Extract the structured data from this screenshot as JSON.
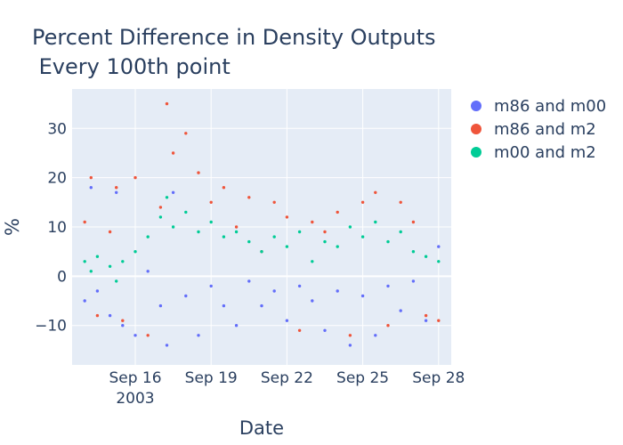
{
  "chart_data": {
    "type": "scatter",
    "title": [
      "Percent Difference in Density Outputs",
      " Every 100th point"
    ],
    "xlabel": "Date",
    "ylabel": "%",
    "x_range": [
      "2003-09-13T12:00",
      "2003-09-28T12:00"
    ],
    "ylim": [
      -18,
      38
    ],
    "x_ticks": [
      {
        "date": "2003-09-16",
        "label": "Sep 16",
        "sublabel": "2003"
      },
      {
        "date": "2003-09-19",
        "label": "Sep 19"
      },
      {
        "date": "2003-09-22",
        "label": "Sep 22"
      },
      {
        "date": "2003-09-25",
        "label": "Sep 25"
      },
      {
        "date": "2003-09-28",
        "label": "Sep 28"
      }
    ],
    "y_ticks": [
      -10,
      0,
      10,
      20,
      30
    ],
    "grid": true,
    "legend_position": "top-right",
    "background": "#e5ecf6",
    "series": [
      {
        "name": "m86 and m00",
        "color": "#636efa",
        "points": [
          [
            "2003-09-14T00:00",
            -5
          ],
          [
            "2003-09-14T06:00",
            18
          ],
          [
            "2003-09-14T12:00",
            -3
          ],
          [
            "2003-09-15T00:00",
            -8
          ],
          [
            "2003-09-15T06:00",
            17
          ],
          [
            "2003-09-15T12:00",
            -10
          ],
          [
            "2003-09-16T00:00",
            -12
          ],
          [
            "2003-09-16T12:00",
            1
          ],
          [
            "2003-09-17T00:00",
            -6
          ],
          [
            "2003-09-17T06:00",
            -14
          ],
          [
            "2003-09-17T12:00",
            17
          ],
          [
            "2003-09-18T00:00",
            -4
          ],
          [
            "2003-09-18T12:00",
            -12
          ],
          [
            "2003-09-19T00:00",
            -2
          ],
          [
            "2003-09-19T12:00",
            -6
          ],
          [
            "2003-09-20T00:00",
            -10
          ],
          [
            "2003-09-20T12:00",
            -1
          ],
          [
            "2003-09-21T00:00",
            -6
          ],
          [
            "2003-09-21T12:00",
            -3
          ],
          [
            "2003-09-22T00:00",
            -9
          ],
          [
            "2003-09-22T12:00",
            -2
          ],
          [
            "2003-09-23T00:00",
            -5
          ],
          [
            "2003-09-23T12:00",
            -11
          ],
          [
            "2003-09-24T00:00",
            -3
          ],
          [
            "2003-09-24T12:00",
            -14
          ],
          [
            "2003-09-25T00:00",
            -4
          ],
          [
            "2003-09-25T12:00",
            -12
          ],
          [
            "2003-09-26T00:00",
            -2
          ],
          [
            "2003-09-26T12:00",
            -7
          ],
          [
            "2003-09-27T00:00",
            -1
          ],
          [
            "2003-09-27T12:00",
            -9
          ],
          [
            "2003-09-28T00:00",
            6
          ]
        ]
      },
      {
        "name": "m86 and m2",
        "color": "#ef553b",
        "points": [
          [
            "2003-09-14T00:00",
            11
          ],
          [
            "2003-09-14T06:00",
            20
          ],
          [
            "2003-09-14T12:00",
            -8
          ],
          [
            "2003-09-15T00:00",
            9
          ],
          [
            "2003-09-15T06:00",
            18
          ],
          [
            "2003-09-15T12:00",
            -9
          ],
          [
            "2003-09-16T00:00",
            20
          ],
          [
            "2003-09-16T12:00",
            -12
          ],
          [
            "2003-09-17T00:00",
            14
          ],
          [
            "2003-09-17T06:00",
            35
          ],
          [
            "2003-09-17T12:00",
            25
          ],
          [
            "2003-09-18T00:00",
            29
          ],
          [
            "2003-09-18T12:00",
            21
          ],
          [
            "2003-09-19T00:00",
            15
          ],
          [
            "2003-09-19T12:00",
            18
          ],
          [
            "2003-09-20T00:00",
            10
          ],
          [
            "2003-09-20T12:00",
            16
          ],
          [
            "2003-09-21T00:00",
            5
          ],
          [
            "2003-09-21T12:00",
            15
          ],
          [
            "2003-09-22T00:00",
            12
          ],
          [
            "2003-09-22T12:00",
            -11
          ],
          [
            "2003-09-23T00:00",
            11
          ],
          [
            "2003-09-23T12:00",
            9
          ],
          [
            "2003-09-24T00:00",
            13
          ],
          [
            "2003-09-24T12:00",
            -12
          ],
          [
            "2003-09-25T00:00",
            15
          ],
          [
            "2003-09-25T12:00",
            17
          ],
          [
            "2003-09-26T00:00",
            -10
          ],
          [
            "2003-09-26T12:00",
            15
          ],
          [
            "2003-09-27T00:00",
            11
          ],
          [
            "2003-09-27T12:00",
            -8
          ],
          [
            "2003-09-28T00:00",
            -9
          ]
        ]
      },
      {
        "name": "m00 and m2",
        "color": "#00cc96",
        "points": [
          [
            "2003-09-14T00:00",
            3
          ],
          [
            "2003-09-14T06:00",
            1
          ],
          [
            "2003-09-14T12:00",
            4
          ],
          [
            "2003-09-15T00:00",
            2
          ],
          [
            "2003-09-15T06:00",
            -1
          ],
          [
            "2003-09-15T12:00",
            3
          ],
          [
            "2003-09-16T00:00",
            5
          ],
          [
            "2003-09-16T12:00",
            8
          ],
          [
            "2003-09-17T00:00",
            12
          ],
          [
            "2003-09-17T06:00",
            16
          ],
          [
            "2003-09-17T12:00",
            10
          ],
          [
            "2003-09-18T00:00",
            13
          ],
          [
            "2003-09-18T12:00",
            9
          ],
          [
            "2003-09-19T00:00",
            11
          ],
          [
            "2003-09-19T12:00",
            8
          ],
          [
            "2003-09-20T00:00",
            9
          ],
          [
            "2003-09-20T12:00",
            7
          ],
          [
            "2003-09-21T00:00",
            5
          ],
          [
            "2003-09-21T12:00",
            8
          ],
          [
            "2003-09-22T00:00",
            6
          ],
          [
            "2003-09-22T12:00",
            9
          ],
          [
            "2003-09-23T00:00",
            3
          ],
          [
            "2003-09-23T12:00",
            7
          ],
          [
            "2003-09-24T00:00",
            6
          ],
          [
            "2003-09-24T12:00",
            10
          ],
          [
            "2003-09-25T00:00",
            8
          ],
          [
            "2003-09-25T12:00",
            11
          ],
          [
            "2003-09-26T00:00",
            7
          ],
          [
            "2003-09-26T12:00",
            9
          ],
          [
            "2003-09-27T00:00",
            5
          ],
          [
            "2003-09-27T12:00",
            4
          ],
          [
            "2003-09-28T00:00",
            3
          ]
        ]
      }
    ]
  }
}
